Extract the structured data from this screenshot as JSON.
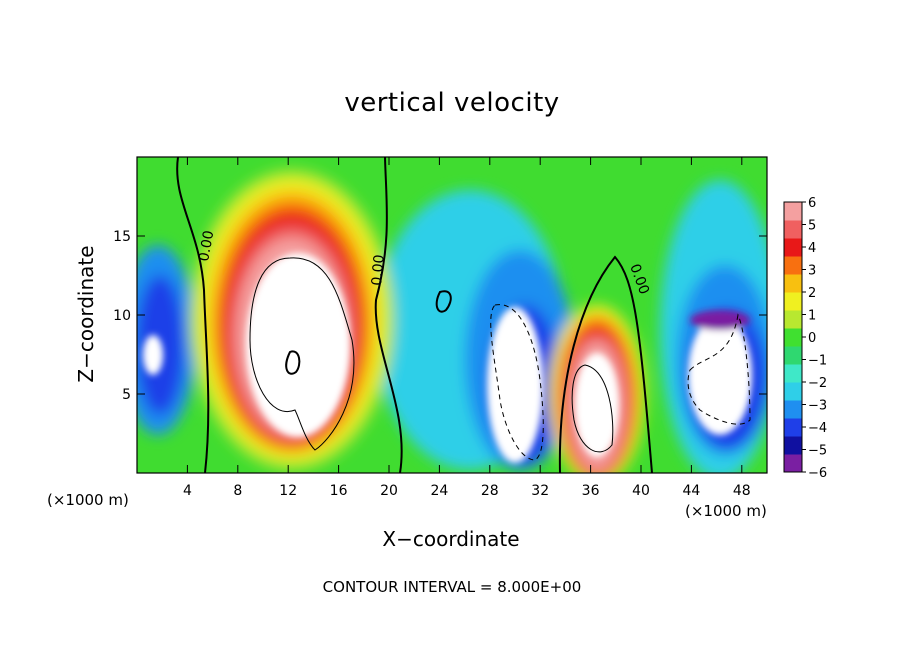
{
  "chart_data": {
    "type": "heatmap",
    "title": "vertical velocity",
    "xlabel": "X−coordinate",
    "ylabel": "Z−coordinate",
    "x_unit_label": "(×1000 m)",
    "footer": "CONTOUR INTERVAL = 8.000E+00",
    "xlim": [
      0,
      50
    ],
    "ylim": [
      0,
      20
    ],
    "x_ticks": [
      4,
      8,
      12,
      16,
      20,
      24,
      28,
      32,
      36,
      40,
      44,
      48
    ],
    "y_ticks": [
      5,
      10,
      15
    ],
    "colorbar": {
      "range": [
        -6,
        6
      ],
      "tick_labels": [
        "6",
        "5",
        "4",
        "3",
        "2",
        "1",
        "0",
        "−1",
        "−2",
        "−3",
        "−4",
        "−5",
        "−6"
      ],
      "levels_from_bottom": [
        "#7a1fa2",
        "#1010a0",
        "#1f3fe8",
        "#1f8ff0",
        "#2fcfe8",
        "#3fe8c8",
        "#2fd870",
        "#40e030",
        "#b8e830",
        "#f0f020",
        "#f8c010",
        "#f87010",
        "#e81818",
        "#f06060",
        "#f4a0a0"
      ]
    },
    "contour_labels": [
      "0.00",
      "0.00",
      "0.00"
    ],
    "cells": [
      {
        "x": 13,
        "z": 9,
        "w": 16
      },
      {
        "x": 33,
        "z": 6,
        "w": -12
      },
      {
        "x": 37,
        "z": 4,
        "w": 10
      },
      {
        "x": 47,
        "z": 6,
        "w": -10
      },
      {
        "x": 1,
        "z": 7,
        "w": -8
      }
    ]
  }
}
